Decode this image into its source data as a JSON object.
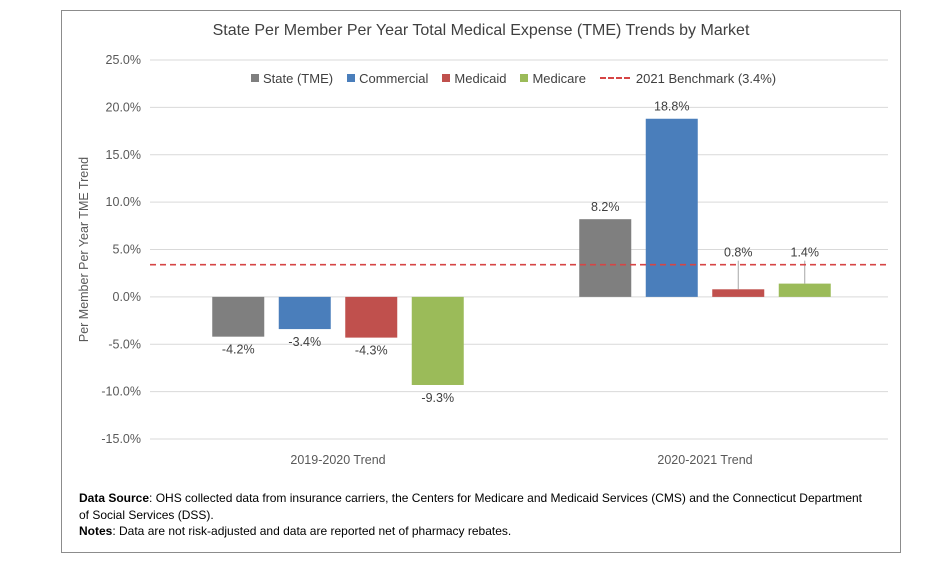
{
  "chart_data": {
    "type": "bar",
    "title": "State Per Member Per Year Total Medical Expense (TME) Trends by Market",
    "ylabel": "Per Member Per Year TME Trend",
    "xlabel": "",
    "ylim": [
      -15,
      25
    ],
    "ytick_step": 5,
    "yticks": [
      "25.0%",
      "20.0%",
      "15.0%",
      "10.0%",
      "5.0%",
      "0.0%",
      "-5.0%",
      "-10.0%",
      "-15.0%"
    ],
    "grid": true,
    "legend_position": "top",
    "categories": [
      "2019-2020 Trend",
      "2020-2021 Trend"
    ],
    "series": [
      {
        "name": "State (TME)",
        "color": "#7f7f7f",
        "values": [
          -4.2,
          8.2
        ],
        "labels": [
          "-4.2%",
          "8.2%"
        ]
      },
      {
        "name": "Commercial",
        "color": "#4a7ebb",
        "values": [
          -3.4,
          18.8
        ],
        "labels": [
          "-3.4%",
          "18.8%"
        ]
      },
      {
        "name": "Medicaid",
        "color": "#c0504d",
        "values": [
          -4.3,
          0.8
        ],
        "labels": [
          "-4.3%",
          "0.8%"
        ]
      },
      {
        "name": "Medicare",
        "color": "#9bbb59",
        "values": [
          -9.3,
          1.4
        ],
        "labels": [
          "-9.3%",
          "1.4%"
        ]
      }
    ],
    "benchmark": {
      "name": "2021 Benchmark (3.4%)",
      "value": 3.4,
      "color": "#d64545"
    }
  },
  "notes": {
    "source_label": "Data Source",
    "source_text": ":  OHS collected data from insurance carriers, the Centers for Medicare and Medicaid Services (CMS) and the Connecticut Department of Social Services (DSS).",
    "notes_label": "Notes",
    "notes_text": ":  Data are not risk-adjusted and data are reported net of pharmacy rebates."
  }
}
